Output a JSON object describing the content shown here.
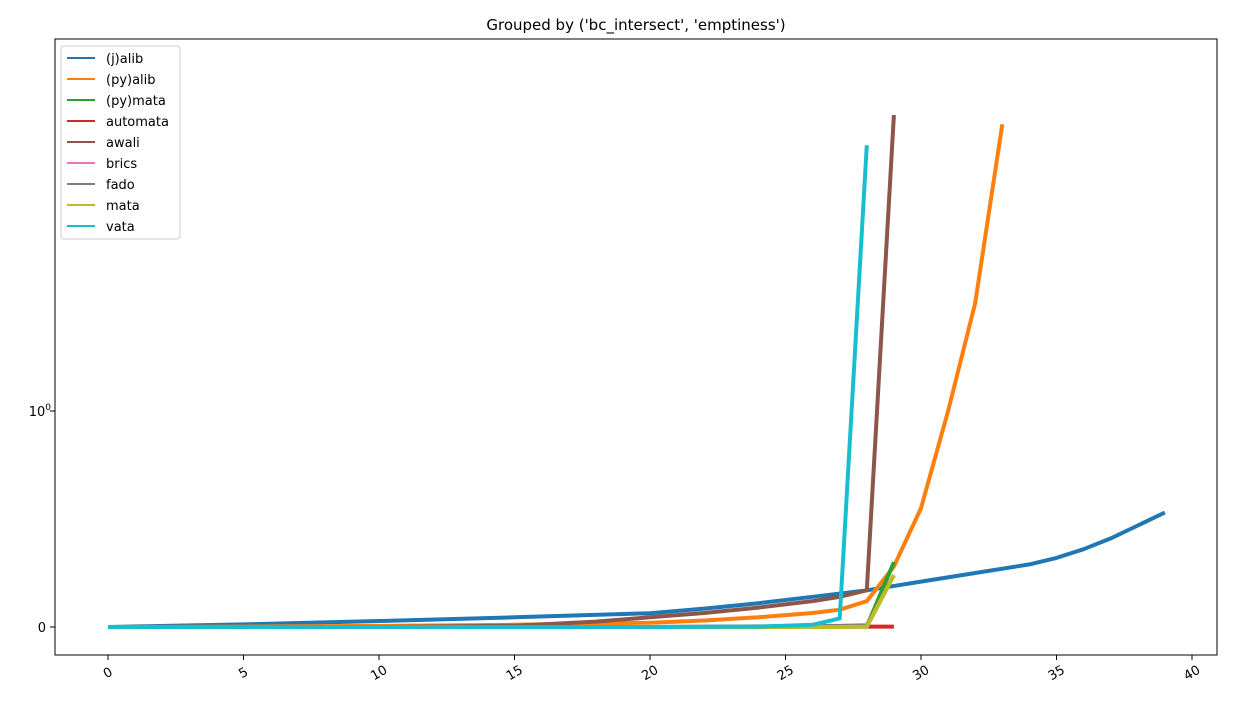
{
  "chart_data": {
    "type": "line",
    "title": "Grouped by ('bc_intersect', 'emptiness')",
    "xlabel": "",
    "ylabel": "",
    "y_scale": "symlog",
    "xlim": [
      -2,
      40.9
    ],
    "x_ticks": [
      0,
      5,
      10,
      15,
      20,
      25,
      30,
      35,
      40
    ],
    "y_ticks": [
      {
        "value": 0,
        "label": "0"
      },
      {
        "value": 1,
        "label": "10",
        "exponent": "0"
      }
    ],
    "grid": false,
    "legend_position": "upper-left",
    "series": [
      {
        "name": "(j)alib",
        "color": "#1f77b4",
        "x": [
          0,
          5,
          10,
          15,
          20,
          22,
          24,
          26,
          28,
          30,
          32,
          34,
          35,
          36,
          37,
          38,
          39
        ],
        "y": [
          0.0,
          0.012,
          0.028,
          0.045,
          0.064,
          0.085,
          0.11,
          0.14,
          0.17,
          0.21,
          0.25,
          0.29,
          0.32,
          0.36,
          0.41,
          0.47,
          0.53
        ]
      },
      {
        "name": "(py)alib",
        "color": "#ff7f0e",
        "x": [
          0,
          5,
          10,
          15,
          20,
          22,
          24,
          26,
          27,
          28,
          29,
          30,
          31,
          32,
          33
        ],
        "y": [
          0.0,
          0.002,
          0.005,
          0.01,
          0.02,
          0.03,
          0.045,
          0.065,
          0.08,
          0.12,
          0.28,
          0.55,
          1.0,
          2.55,
          12.0
        ]
      },
      {
        "name": "(py)mata",
        "color": "#2ca02c",
        "x": [
          0,
          10,
          20,
          27,
          28,
          29
        ],
        "y": [
          0.0,
          0.0,
          0.0,
          0.002,
          0.003,
          0.3
        ]
      },
      {
        "name": "automata",
        "color": "#d62728",
        "x": [
          0,
          10,
          20,
          28,
          29
        ],
        "y": [
          0.0,
          0.0,
          0.0,
          0.002,
          0.002
        ]
      },
      {
        "name": "awali",
        "color": "#8c564b",
        "x": [
          0,
          10,
          15,
          18,
          20,
          22,
          24,
          26,
          27,
          28,
          29
        ],
        "y": [
          0.0,
          0.0,
          0.006,
          0.025,
          0.045,
          0.065,
          0.09,
          0.12,
          0.14,
          0.17,
          13.0
        ]
      },
      {
        "name": "brics",
        "color": "#e377c2",
        "x": [
          0,
          10,
          20,
          27,
          28,
          29
        ],
        "y": [
          0.0,
          0.0,
          0.0,
          0.001,
          0.002,
          0.24
        ]
      },
      {
        "name": "fado",
        "color": "#7f7f7f",
        "x": [
          0,
          10,
          20,
          27,
          28,
          29
        ],
        "y": [
          0.0,
          0.0,
          0.0,
          0.005,
          0.008,
          0.24
        ]
      },
      {
        "name": "mata",
        "color": "#bcbd22",
        "x": [
          0,
          10,
          20,
          27,
          28,
          29
        ],
        "y": [
          0.0,
          0.0,
          0.0,
          0.0,
          0.001,
          0.24
        ]
      },
      {
        "name": "vata",
        "color": "#17becf",
        "x": [
          0,
          10,
          20,
          24,
          26,
          27,
          28
        ],
        "y": [
          0.0,
          0.0,
          0.0,
          0.002,
          0.01,
          0.04,
          10.0
        ]
      }
    ]
  }
}
